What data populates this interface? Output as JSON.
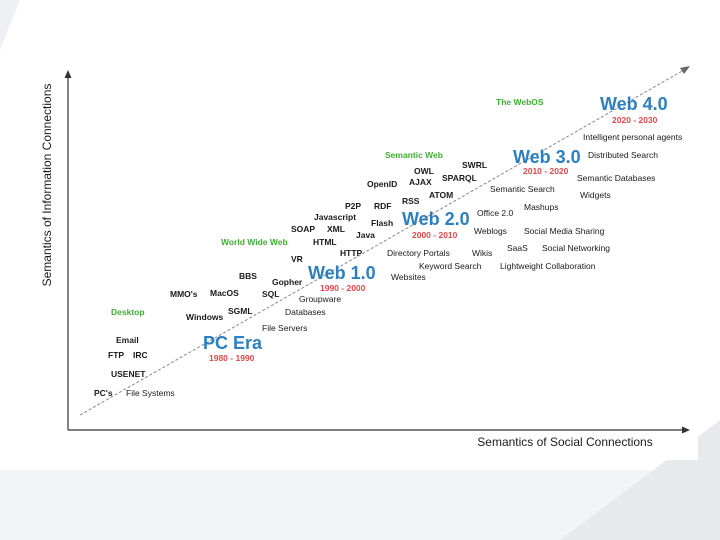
{
  "axes": {
    "y_label": "Semantics of Information Connections",
    "x_label": "Semantics of Social Connections"
  },
  "colors": {
    "era_blue": "#2e7fbf",
    "era_red": "#e0484a",
    "category_green": "#3fae35",
    "text_dark": "#1a1a1a",
    "axis": "#333333",
    "trend_line": "#888888"
  },
  "eras": [
    {
      "id": "pc-era",
      "name": "PC Era",
      "years": "1980 - 1990"
    },
    {
      "id": "web-1",
      "name": "Web 1.0",
      "years": "1990 - 2000"
    },
    {
      "id": "web-2",
      "name": "Web 2.0",
      "years": "2000 - 2010"
    },
    {
      "id": "web-3",
      "name": "Web 3.0",
      "years": "2010 - 2020"
    },
    {
      "id": "web-4",
      "name": "Web 4.0",
      "years": "2020 - 2030"
    }
  ],
  "categories": [
    "Desktop",
    "World Wide Web",
    "Semantic Web",
    "The WebOS"
  ],
  "information_terms": [
    "PC's",
    "USENET",
    "FTP",
    "IRC",
    "Email",
    "Windows",
    "MMO's",
    "MacOS",
    "SGML",
    "BBS",
    "Gopher",
    "SQL",
    "VR",
    "SOAP",
    "XML",
    "HTML",
    "HTTP",
    "Java",
    "Javascript",
    "Flash",
    "P2P",
    "RDF",
    "RSS",
    "OpenID",
    "AJAX",
    "ATOM",
    "OWL",
    "SPARQL",
    "SWRL"
  ],
  "social_terms": [
    "File Systems",
    "File Servers",
    "Databases",
    "Groupware",
    "Websites",
    "Keyword Search",
    "Directory Portals",
    "Wikis",
    "Weblogs",
    "Office 2.0",
    "Lightweight Collaboration",
    "SaaS",
    "Social Networking",
    "Social Media Sharing",
    "Mashups",
    "Semantic Search",
    "Widgets",
    "Semantic Databases",
    "Distributed Search",
    "Intelligent personal agents"
  ]
}
